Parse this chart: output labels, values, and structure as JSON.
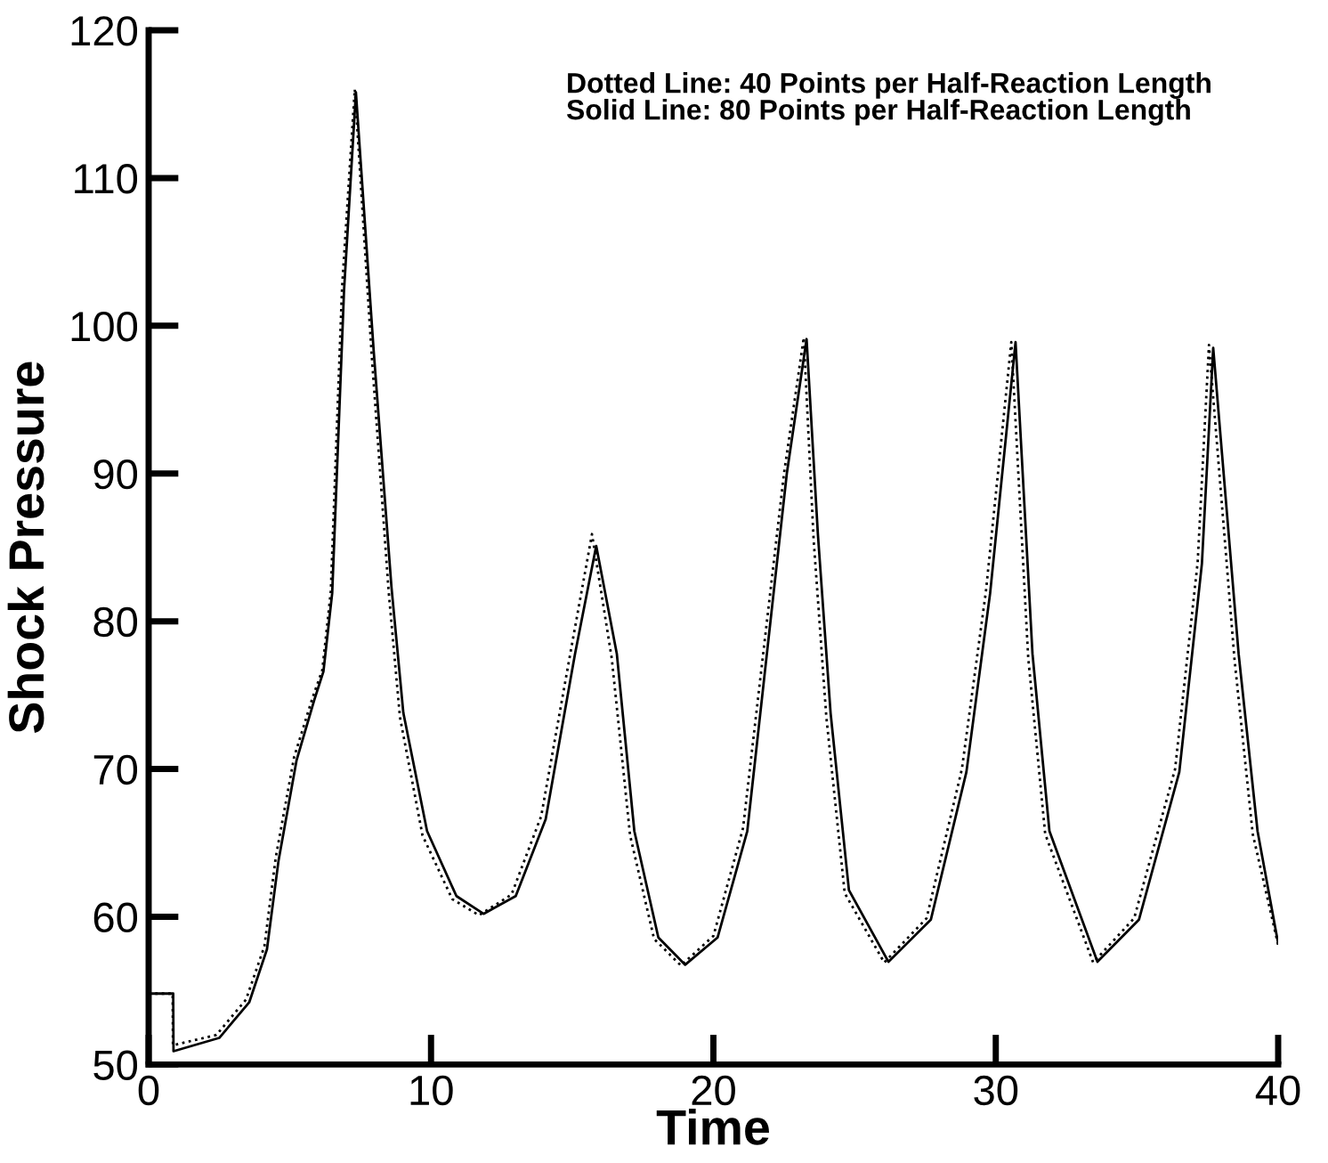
{
  "chart_data": {
    "type": "line",
    "xlabel": "Time",
    "ylabel": "Shock Pressure",
    "xlim": [
      0,
      40
    ],
    "ylim": [
      50,
      120
    ],
    "xticks": [
      0,
      10,
      20,
      30,
      40
    ],
    "yticks": [
      50,
      60,
      70,
      80,
      90,
      100,
      110,
      120
    ],
    "grid": false,
    "marker": "none",
    "annotations": [
      "Dotted Line: 40 Points per Half-Reaction Length",
      "Solid Line: 80 Points per Half-Reaction Length"
    ],
    "series": [
      {
        "color": "#000000",
        "line_style": "dotted",
        "x": [
          0,
          0.85,
          0.86,
          2.4,
          3.45,
          4.1,
          4.5,
          5.15,
          5.8,
          6.15,
          6.45,
          6.85,
          7.3,
          7.9,
          8.5,
          8.9,
          9.7,
          10.75,
          11.7,
          12.85,
          13.9,
          14.95,
          15.7,
          16.4,
          17.05,
          17.9,
          18.85,
          20.0,
          21.05,
          22.5,
          23.2,
          23.55,
          24.0,
          24.65,
          26.05,
          27.55,
          28.8,
          29.65,
          30.55,
          31.15,
          31.75,
          33.45,
          34.9,
          36.35,
          37.15,
          37.55,
          38.45,
          39.1,
          40
        ],
        "values": [
          54.8,
          54.8,
          51.3,
          52.0,
          54.4,
          58.0,
          64.0,
          70.8,
          74.8,
          76.7,
          82.0,
          102.6,
          116.0,
          98.0,
          82.0,
          73.5,
          65.5,
          61.2,
          60.1,
          61.5,
          66.8,
          78.0,
          85.9,
          77.5,
          65.5,
          58.5,
          56.7,
          58.7,
          66.0,
          90.0,
          99.2,
          85.5,
          73.5,
          61.6,
          56.9,
          59.9,
          70.0,
          82.0,
          98.9,
          77.5,
          65.6,
          56.9,
          59.9,
          70.0,
          84.0,
          98.7,
          77.5,
          65.6,
          58.1
        ]
      },
      {
        "color": "#000000",
        "line_style": "solid",
        "x": [
          0,
          0.87,
          0.88,
          2.5,
          3.56,
          4.19,
          4.6,
          5.24,
          5.87,
          6.19,
          6.5,
          6.92,
          7.34,
          7.97,
          8.6,
          9.02,
          9.86,
          10.9,
          11.86,
          13.0,
          14.06,
          15.1,
          15.85,
          16.58,
          17.2,
          18.05,
          19.0,
          20.15,
          21.2,
          22.6,
          23.3,
          23.7,
          24.15,
          24.8,
          26.2,
          27.7,
          28.96,
          29.8,
          30.7,
          31.3,
          31.9,
          33.6,
          35.07,
          36.5,
          37.3,
          37.7,
          38.6,
          39.27,
          40
        ],
        "values": [
          54.8,
          54.8,
          50.9,
          51.8,
          54.2,
          57.8,
          63.8,
          70.6,
          74.7,
          76.6,
          81.9,
          102.4,
          115.8,
          98.3,
          82.3,
          73.8,
          65.8,
          61.4,
          60.2,
          61.4,
          66.6,
          77.8,
          85.1,
          77.8,
          65.8,
          58.6,
          56.75,
          58.6,
          65.8,
          90.0,
          99.1,
          85.9,
          73.8,
          61.8,
          56.95,
          59.8,
          69.8,
          81.9,
          98.9,
          77.8,
          65.8,
          56.95,
          59.8,
          69.8,
          83.9,
          98.5,
          77.8,
          65.8,
          58.2
        ]
      }
    ]
  }
}
